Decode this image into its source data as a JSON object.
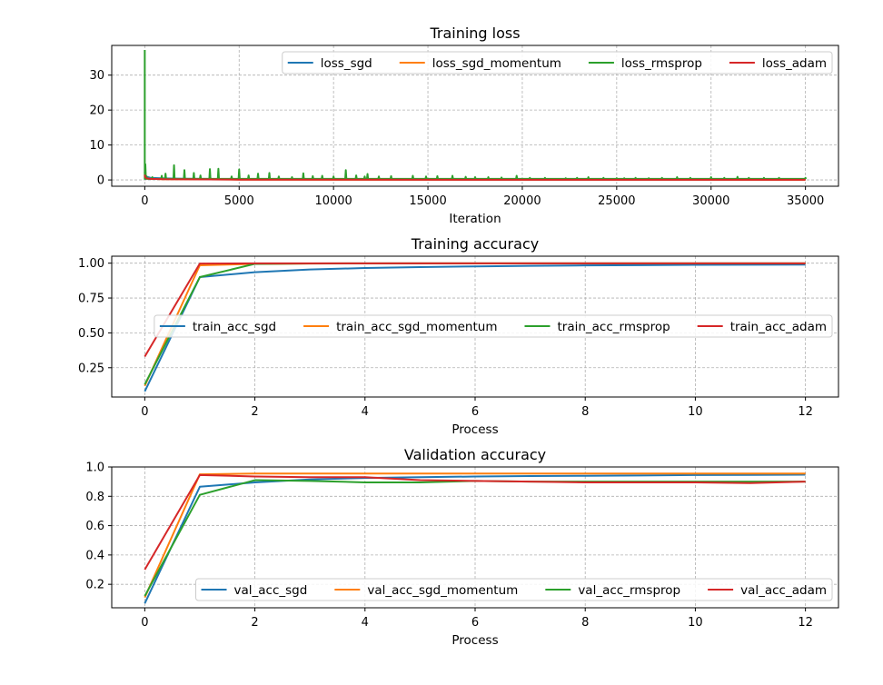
{
  "chart_data": [
    {
      "type": "line",
      "title": "Training loss",
      "xlabel": "Iteration",
      "ylabel": "",
      "xlim": [
        -1750,
        36750
      ],
      "ylim": [
        -1.8,
        38.5
      ],
      "xticks": [
        0,
        5000,
        10000,
        15000,
        20000,
        25000,
        30000,
        35000
      ],
      "yticks": [
        0,
        10,
        20,
        30
      ],
      "grid": true,
      "legend": {
        "placement": "top-right",
        "columns": 4
      },
      "series": [
        {
          "name": "loss_sgd",
          "color": "#1f77b4",
          "x": [
            0,
            20,
            100,
            300,
            1000,
            2000,
            5000,
            10000,
            20000,
            35000
          ],
          "y": [
            2.3,
            1.6,
            0.9,
            0.6,
            0.45,
            0.35,
            0.25,
            0.15,
            0.1,
            0.07
          ]
        },
        {
          "name": "loss_sgd_momentum",
          "color": "#ff7f0e",
          "x": [
            0,
            20,
            100,
            300,
            1000,
            5000,
            10000,
            35000
          ],
          "y": [
            2.3,
            1.0,
            0.5,
            0.3,
            0.2,
            0.1,
            0.06,
            0.03
          ]
        },
        {
          "name": "loss_rmsprop",
          "color": "#2ca02c",
          "baseline": 0.3,
          "x": [
            0,
            30,
            100,
            400,
            900,
            1100,
            1550,
            2100,
            2600,
            2950,
            3450,
            3900,
            4600,
            5000,
            5500,
            6000,
            6600,
            7100,
            7800,
            8400,
            8900,
            9400,
            10000,
            10650,
            11200,
            11650,
            11800,
            12400,
            13050,
            14200,
            14900,
            15500,
            16300,
            17000,
            17500,
            18200,
            18900,
            19700,
            20400,
            21200,
            22300,
            22900,
            23500,
            24300,
            25000,
            25400,
            26000,
            26700,
            27400,
            28200,
            28900,
            30000,
            30700,
            31400,
            32000,
            32800,
            33600,
            35000
          ],
          "y": [
            37.2,
            4.5,
            1.0,
            0.8,
            1.2,
            1.8,
            4.2,
            2.8,
            2.0,
            1.3,
            3.1,
            3.2,
            1.0,
            3.0,
            1.3,
            1.8,
            2.0,
            1.0,
            0.8,
            1.9,
            1.1,
            1.2,
            1.0,
            2.8,
            1.3,
            1.0,
            1.7,
            1.0,
            1.1,
            1.2,
            1.0,
            1.1,
            1.2,
            0.9,
            0.8,
            0.8,
            0.7,
            1.2,
            0.6,
            0.6,
            0.5,
            0.6,
            0.8,
            0.6,
            0.5,
            0.5,
            0.6,
            0.5,
            0.6,
            0.8,
            0.6,
            0.8,
            0.6,
            0.9,
            0.6,
            0.6,
            0.6,
            0.6
          ]
        },
        {
          "name": "loss_adam",
          "color": "#d62728",
          "x": [
            0,
            20,
            100,
            300,
            1000,
            5000,
            10000,
            20000,
            35000
          ],
          "y": [
            1.5,
            0.8,
            0.45,
            0.3,
            0.2,
            0.1,
            0.08,
            0.06,
            0.05
          ]
        }
      ]
    },
    {
      "type": "line",
      "title": "Training accuracy",
      "xlabel": "Process",
      "ylabel": "",
      "xlim": [
        -0.6,
        12.6
      ],
      "ylim": [
        0.04,
        1.05
      ],
      "xticks": [
        0,
        2,
        4,
        6,
        8,
        10,
        12
      ],
      "yticks": [
        0.25,
        0.5,
        0.75,
        1.0
      ],
      "ytick_labels": [
        "0.25",
        "0.50",
        "0.75",
        "1.00"
      ],
      "grid": true,
      "legend": {
        "placement": "center-right",
        "columns": 4
      },
      "x": [
        0,
        1,
        2,
        3,
        4,
        5,
        6,
        7,
        8,
        9,
        10,
        11,
        12
      ],
      "series": [
        {
          "name": "train_acc_sgd",
          "color": "#1f77b4",
          "values": [
            0.08,
            0.9,
            0.935,
            0.955,
            0.965,
            0.972,
            0.977,
            0.981,
            0.984,
            0.986,
            0.988,
            0.989,
            0.99
          ]
        },
        {
          "name": "train_acc_sgd_momentum",
          "color": "#ff7f0e",
          "values": [
            0.12,
            0.985,
            0.995,
            0.997,
            0.998,
            0.999,
            0.999,
            0.999,
            0.999,
            0.999,
            0.999,
            0.999,
            0.999
          ]
        },
        {
          "name": "train_acc_rmsprop",
          "color": "#2ca02c",
          "values": [
            0.13,
            0.9,
            0.995,
            0.998,
            0.999,
            0.999,
            0.999,
            0.999,
            0.999,
            0.999,
            0.999,
            0.999,
            0.999
          ]
        },
        {
          "name": "train_acc_adam",
          "color": "#d62728",
          "values": [
            0.33,
            0.997,
            0.999,
            0.999,
            0.999,
            0.999,
            0.999,
            0.999,
            0.999,
            0.999,
            0.999,
            0.999,
            0.999
          ]
        }
      ]
    },
    {
      "type": "line",
      "title": "Validation accuracy",
      "xlabel": "Process",
      "ylabel": "",
      "xlim": [
        -0.6,
        12.6
      ],
      "ylim": [
        0.04,
        1.0
      ],
      "xticks": [
        0,
        2,
        4,
        6,
        8,
        10,
        12
      ],
      "yticks": [
        0.2,
        0.4,
        0.6,
        0.8,
        1.0
      ],
      "ytick_labels": [
        "0.2",
        "0.4",
        "0.6",
        "0.8",
        "1.0"
      ],
      "grid": true,
      "legend": {
        "placement": "bottom-right",
        "columns": 4
      },
      "x": [
        0,
        1,
        2,
        3,
        4,
        5,
        6,
        7,
        8,
        9,
        10,
        11,
        12
      ],
      "series": [
        {
          "name": "val_acc_sgd",
          "color": "#1f77b4",
          "values": [
            0.07,
            0.865,
            0.895,
            0.915,
            0.925,
            0.93,
            0.935,
            0.938,
            0.94,
            0.942,
            0.945,
            0.946,
            0.947
          ]
        },
        {
          "name": "val_acc_sgd_momentum",
          "color": "#ff7f0e",
          "values": [
            0.11,
            0.95,
            0.955,
            0.955,
            0.955,
            0.955,
            0.955,
            0.955,
            0.955,
            0.955,
            0.955,
            0.955,
            0.955
          ]
        },
        {
          "name": "val_acc_rmsprop",
          "color": "#2ca02c",
          "values": [
            0.12,
            0.81,
            0.91,
            0.905,
            0.895,
            0.895,
            0.905,
            0.9,
            0.9,
            0.9,
            0.9,
            0.9,
            0.9
          ]
        },
        {
          "name": "val_acc_adam",
          "color": "#d62728",
          "values": [
            0.3,
            0.945,
            0.935,
            0.93,
            0.93,
            0.91,
            0.905,
            0.9,
            0.895,
            0.895,
            0.895,
            0.89,
            0.9
          ]
        }
      ]
    }
  ]
}
